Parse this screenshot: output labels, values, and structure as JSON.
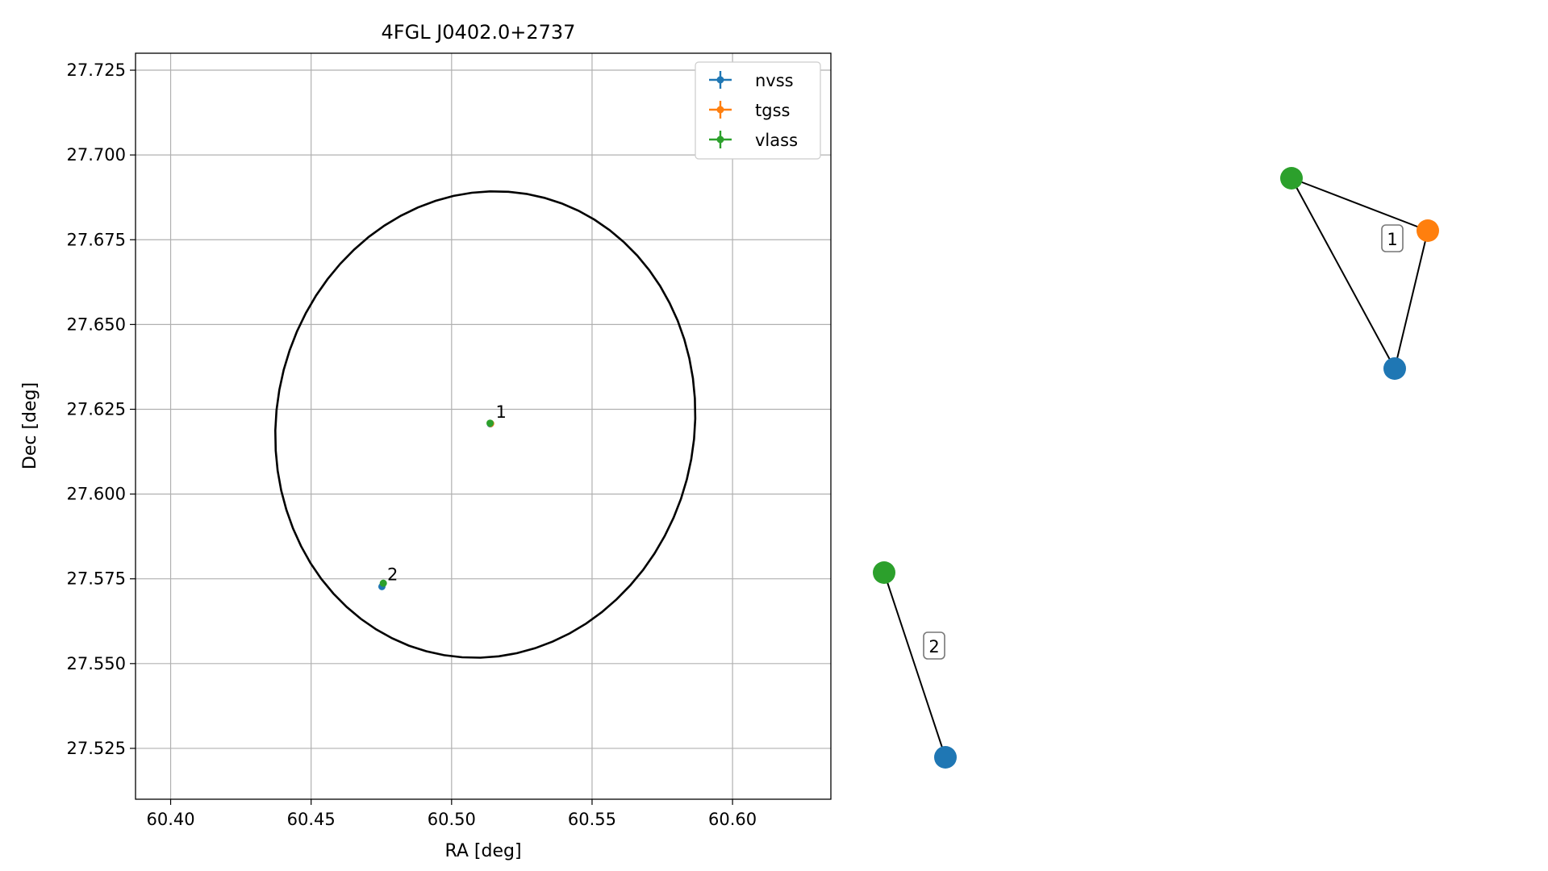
{
  "chart_data": [
    {
      "type": "scatter",
      "title": "4FGL J0402.0+2737",
      "xlabel": "RA [deg]",
      "ylabel": "Dec [deg]",
      "xlim": [
        60.3875,
        60.635
      ],
      "ylim": [
        27.51,
        27.73
      ],
      "grid": true,
      "legend_placement": "top-right",
      "x_ticks": [
        60.4,
        60.45,
        60.5,
        60.55,
        60.6
      ],
      "x_tick_labels": [
        "60.40",
        "60.45",
        "60.50",
        "60.55",
        "60.60"
      ],
      "y_ticks": [
        27.525,
        27.55,
        27.575,
        27.6,
        27.625,
        27.65,
        27.675,
        27.7,
        27.725
      ],
      "y_tick_labels": [
        "27.525",
        "27.550",
        "27.575",
        "27.600",
        "27.625",
        "27.650",
        "27.675",
        "27.700",
        "27.725"
      ],
      "legend": [
        {
          "name": "nvss",
          "color": "#1f77b4"
        },
        {
          "name": "tgss",
          "color": "#ff7f0e"
        },
        {
          "name": "vlass",
          "color": "#2ca02c"
        }
      ],
      "series": [
        {
          "name": "nvss",
          "color": "#1f77b4",
          "points": [
            {
              "x": 60.4752,
              "y": 27.5727
            },
            {
              "x": 60.5138,
              "y": 27.6207
            }
          ]
        },
        {
          "name": "tgss",
          "color": "#ff7f0e",
          "points": [
            {
              "x": 60.5139,
              "y": 27.6208
            }
          ]
        },
        {
          "name": "vlass",
          "color": "#2ca02c",
          "points": [
            {
              "x": 60.4757,
              "y": 27.5737
            },
            {
              "x": 60.5137,
              "y": 27.6209
            }
          ]
        }
      ],
      "annotations": [
        {
          "text": "1",
          "x": 60.5157,
          "y": 27.6225
        },
        {
          "text": "2",
          "x": 60.4771,
          "y": 27.5746
        }
      ],
      "ellipse": {
        "center_x": 60.512,
        "center_y": 27.6205,
        "semi_axis_1": 0.0752,
        "semi_axis_2": 0.0683,
        "angle_deg": 15,
        "color": "#000000"
      }
    },
    {
      "type": "graph",
      "nodes": [
        {
          "id": "n1",
          "color": "#2ca02c"
        },
        {
          "id": "n2",
          "color": "#ff7f0e"
        },
        {
          "id": "n3",
          "color": "#1f77b4"
        },
        {
          "id": "n4",
          "color": "#2ca02c"
        },
        {
          "id": "n5",
          "color": "#1f77b4"
        }
      ],
      "edges": [
        [
          "n1",
          "n2"
        ],
        [
          "n1",
          "n3"
        ],
        [
          "n2",
          "n3"
        ],
        [
          "n4",
          "n5"
        ]
      ],
      "labels": [
        {
          "text": "1",
          "group": [
            "n1",
            "n2",
            "n3"
          ]
        },
        {
          "text": "2",
          "group": [
            "n4",
            "n5"
          ]
        }
      ]
    }
  ]
}
